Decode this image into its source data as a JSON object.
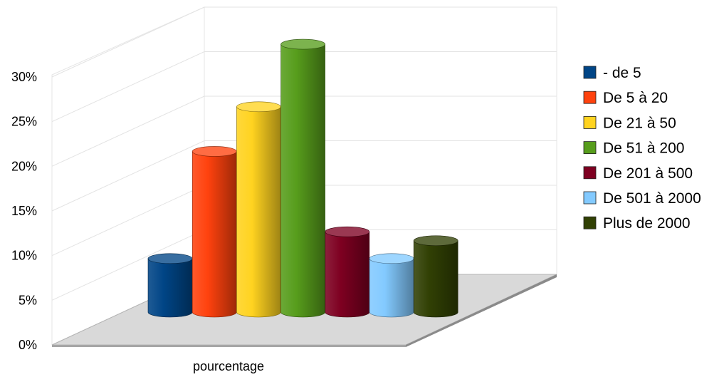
{
  "chart_data": {
    "type": "bar",
    "categories": [
      "pourcentage"
    ],
    "series": [
      {
        "name": "- de 5",
        "values": [
          6
        ],
        "color": "#004586"
      },
      {
        "name": "De 5 à 20",
        "values": [
          18
        ],
        "color": "#ff420e"
      },
      {
        "name": "De 21 à 50",
        "values": [
          23
        ],
        "color": "#ffd320"
      },
      {
        "name": "De 51 à 200",
        "values": [
          30
        ],
        "color": "#579d1c"
      },
      {
        "name": "De 201 à 500",
        "values": [
          9
        ],
        "color": "#7e0021"
      },
      {
        "name": "De 501 à 2000",
        "values": [
          6
        ],
        "color": "#83caff"
      },
      {
        "name": "Plus de 2000",
        "values": [
          8
        ],
        "color": "#314004"
      }
    ],
    "title": "",
    "xlabel": "",
    "ylabel": "",
    "ylim": [
      0,
      30
    ],
    "yticks": [
      "0%",
      "5%",
      "10%",
      "15%",
      "20%",
      "25%",
      "30%"
    ],
    "grid": true,
    "legend": "right",
    "style": "3d-cylinder"
  }
}
